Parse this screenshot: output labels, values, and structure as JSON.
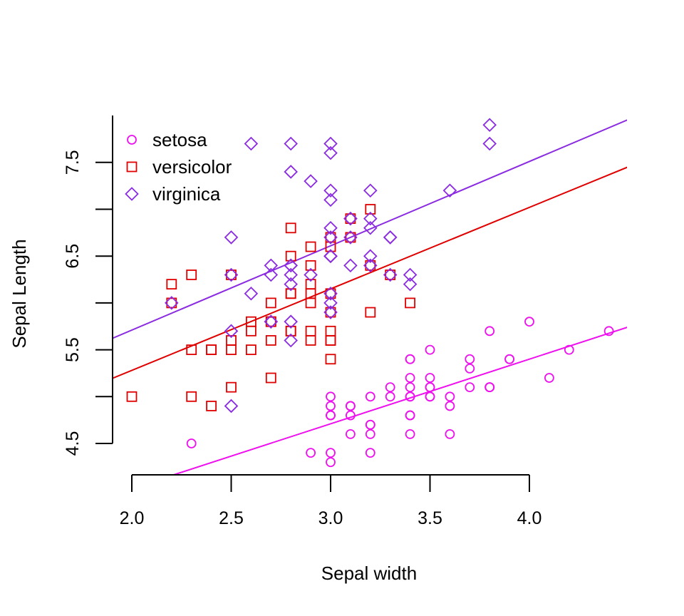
{
  "chart_data": {
    "type": "scatter",
    "title": "",
    "xlabel": "Sepal width",
    "ylabel": "Sepal Length",
    "xlim": [
      1.9,
      4.5
    ],
    "ylim": [
      4.15,
      7.95
    ],
    "x_ticks": [
      2.0,
      2.5,
      3.0,
      3.5,
      4.0
    ],
    "x_tick_labels": [
      "2.0",
      "2.5",
      "3.0",
      "3.5",
      "4.0"
    ],
    "y_ticks": [
      4.5,
      5.0,
      5.5,
      6.0,
      6.5,
      7.0,
      7.5
    ],
    "y_tick_labels": [
      "4.5",
      "",
      "5.5",
      "",
      "6.5",
      "",
      "7.5"
    ],
    "grid": false,
    "legend": {
      "placement": "top-left"
    },
    "series": [
      {
        "name": "setosa",
        "marker": "circle",
        "color": "#ee10ee",
        "x": [
          3.5,
          3.0,
          3.2,
          3.1,
          3.6,
          3.9,
          3.4,
          3.4,
          2.9,
          3.1,
          3.7,
          3.4,
          3.0,
          3.0,
          4.0,
          4.4,
          3.9,
          3.5,
          3.8,
          3.8,
          3.4,
          3.7,
          3.6,
          3.3,
          3.4,
          3.0,
          3.4,
          3.5,
          3.4,
          3.2,
          3.1,
          3.4,
          4.1,
          4.2,
          3.1,
          3.2,
          3.5,
          3.6,
          3.0,
          3.4,
          3.5,
          2.3,
          3.2,
          3.5,
          3.8,
          3.0,
          3.8,
          3.2,
          3.7,
          3.3
        ],
        "y": [
          5.1,
          4.9,
          4.7,
          4.6,
          5.0,
          5.4,
          4.6,
          5.0,
          4.4,
          4.9,
          5.4,
          4.8,
          4.8,
          4.3,
          5.8,
          5.7,
          5.4,
          5.1,
          5.7,
          5.1,
          5.4,
          5.1,
          4.6,
          5.1,
          4.8,
          5.0,
          5.0,
          5.2,
          5.2,
          4.7,
          4.8,
          5.4,
          5.2,
          5.5,
          4.9,
          5.0,
          5.5,
          4.9,
          4.4,
          5.1,
          5.0,
          4.5,
          4.4,
          5.0,
          5.1,
          4.8,
          5.1,
          4.6,
          5.3,
          5.0
        ],
        "trend": {
          "intercept": 2.64,
          "slope": 0.69
        }
      },
      {
        "name": "versicolor",
        "marker": "square",
        "color": "#e00000",
        "x": [
          3.2,
          3.2,
          3.1,
          2.3,
          2.8,
          2.8,
          3.3,
          2.4,
          2.9,
          2.7,
          2.0,
          3.0,
          2.2,
          2.9,
          2.9,
          3.1,
          3.0,
          2.7,
          2.2,
          2.5,
          3.2,
          2.8,
          2.5,
          2.8,
          2.9,
          3.0,
          2.8,
          3.0,
          2.9,
          2.6,
          2.4,
          2.4,
          2.7,
          2.7,
          3.0,
          3.4,
          3.1,
          2.3,
          3.0,
          2.5,
          2.6,
          3.0,
          2.6,
          2.3,
          2.7,
          3.0,
          2.9,
          2.9,
          2.5,
          2.8
        ],
        "y": [
          7.0,
          6.4,
          6.9,
          5.5,
          6.5,
          5.7,
          6.3,
          4.9,
          6.6,
          5.2,
          5.0,
          5.9,
          6.0,
          6.1,
          5.6,
          6.7,
          5.6,
          5.8,
          6.2,
          5.6,
          5.9,
          6.1,
          6.3,
          6.1,
          6.4,
          6.6,
          6.8,
          6.7,
          6.0,
          5.7,
          5.5,
          5.5,
          5.8,
          6.0,
          5.4,
          6.0,
          6.7,
          6.3,
          5.6,
          5.5,
          5.5,
          6.1,
          5.8,
          5.0,
          5.6,
          5.7,
          5.7,
          6.2,
          5.1,
          5.7
        ],
        "trend": {
          "intercept": 3.54,
          "slope": 0.87
        }
      },
      {
        "name": "virginica",
        "marker": "diamond",
        "color": "#8a2be2",
        "x": [
          3.3,
          2.7,
          3.0,
          2.9,
          3.0,
          3.0,
          2.5,
          2.9,
          2.5,
          3.6,
          3.2,
          2.7,
          3.0,
          2.5,
          2.8,
          3.2,
          3.0,
          3.8,
          2.6,
          2.2,
          3.2,
          2.8,
          2.8,
          2.7,
          3.3,
          3.2,
          2.8,
          3.0,
          2.8,
          3.0,
          2.8,
          3.8,
          2.8,
          2.8,
          2.6,
          3.0,
          3.4,
          3.1,
          3.0,
          3.1,
          3.1,
          3.1,
          2.7,
          3.2,
          3.3,
          3.0,
          2.5,
          3.0,
          3.4,
          3.0
        ],
        "y": [
          6.3,
          5.8,
          7.1,
          6.3,
          6.5,
          7.6,
          4.9,
          7.3,
          6.7,
          7.2,
          6.5,
          6.4,
          6.8,
          5.7,
          5.8,
          6.4,
          6.5,
          7.7,
          7.7,
          6.0,
          6.9,
          5.6,
          7.7,
          6.3,
          6.7,
          7.2,
          6.2,
          6.1,
          6.4,
          7.2,
          7.4,
          7.9,
          6.4,
          6.3,
          6.1,
          7.7,
          6.3,
          6.4,
          6.0,
          6.9,
          6.7,
          6.9,
          5.8,
          6.8,
          6.7,
          6.7,
          6.3,
          6.5,
          6.2,
          5.9
        ],
        "trend": {
          "intercept": 3.91,
          "slope": 0.9
        }
      }
    ]
  }
}
